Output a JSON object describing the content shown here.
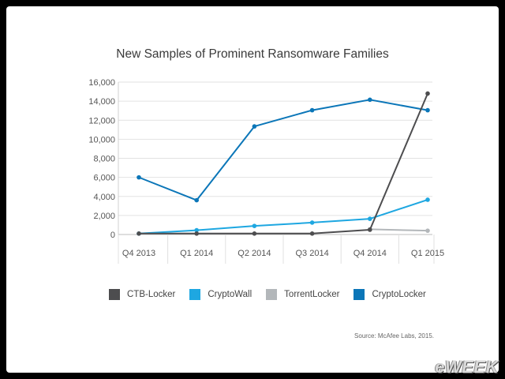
{
  "chart_data": {
    "type": "line",
    "title": "New Samples of Prominent Ransomware Families",
    "xlabel": "",
    "ylabel": "",
    "categories": [
      "Q4 2013",
      "Q1 2014",
      "Q2 2014",
      "Q3 2014",
      "Q4 2014",
      "Q1 2015"
    ],
    "ylim": [
      0,
      16000
    ],
    "yticks": [
      0,
      2000,
      4000,
      6000,
      8000,
      10000,
      12000,
      14000,
      16000
    ],
    "ytick_labels": [
      "0",
      "2,000",
      "4,000",
      "6,000",
      "8,000",
      "10,000",
      "12,000",
      "14,000",
      "16,000"
    ],
    "grid": "horizontal",
    "legend_position": "bottom",
    "series": [
      {
        "name": "CTB-Locker",
        "color": "#4d4d4f",
        "values": [
          100,
          100,
          100,
          100,
          500,
          14800
        ]
      },
      {
        "name": "CryptoWall",
        "color": "#1ea7e1",
        "values": [
          100,
          450,
          900,
          1250,
          1650,
          3650
        ]
      },
      {
        "name": "TorrentLocker",
        "color": "#b3b7ba",
        "values": [
          null,
          null,
          null,
          null,
          550,
          400
        ]
      },
      {
        "name": "CryptoLocker",
        "color": "#0b76b8",
        "values": [
          6000,
          3600,
          11350,
          13050,
          14150,
          13050
        ]
      }
    ]
  },
  "source": "Source: McAfee Labs, 2015.",
  "watermark": "eWEEK"
}
